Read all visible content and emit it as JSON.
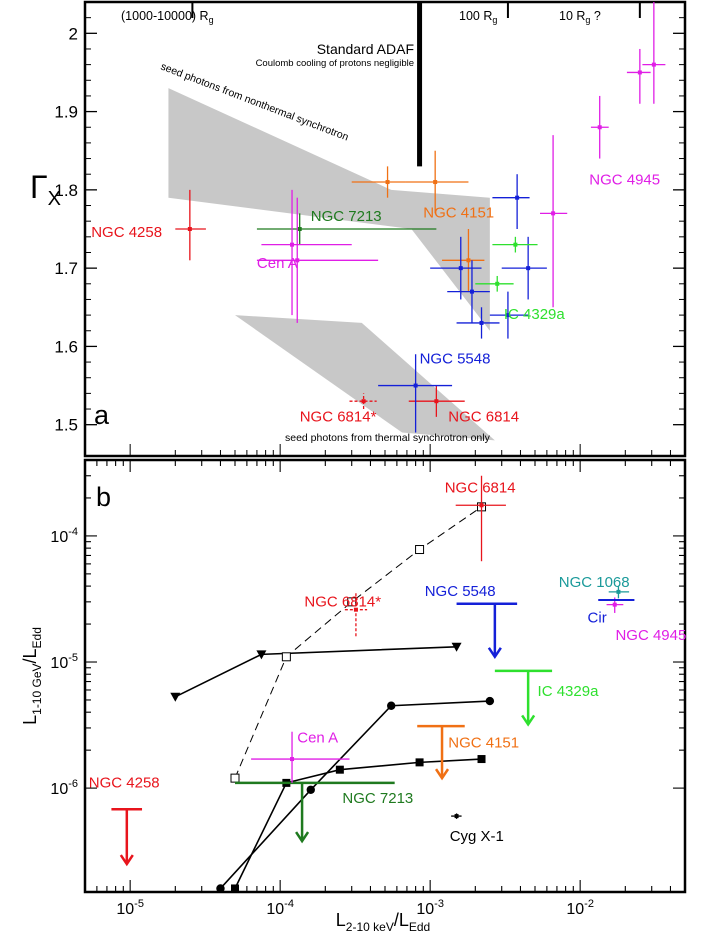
{
  "chart_data": [
    {
      "panel": "a",
      "type": "scatter",
      "x_scale": "log",
      "xlim": [
        5e-06,
        0.05
      ],
      "ylim": [
        1.46,
        2.04
      ],
      "ylabel": "Γ",
      "ylabel_sub": "X",
      "y_ticks": [
        "1.5",
        "1.6",
        "1.7",
        "1.8",
        "1.9",
        "2"
      ],
      "panel_label": "a",
      "regions_top": {
        "left": "(1000-10000) R",
        "left_sub": "g",
        "mid": "100 R",
        "mid_sub": "g",
        "right": "10 R",
        "right_sub": "g",
        "right_suffix": " ?",
        "boundaries_x": [
          2.6e-05,
          0.00085,
          0.0033,
          0.025
        ]
      },
      "annotations": {
        "adaf_title": "Standard ADAF",
        "adaf_sub": "Coulomb cooling of protons negligible",
        "nonthermal": "seed photons from nonthermal synchrotron",
        "thermal": "seed photons from thermal synchrotron only"
      },
      "adaf_line_x": 0.00085,
      "adaf_line_y": [
        1.83,
        2.04
      ],
      "bands": {
        "nonthermal": [
          [
            1.8e-05,
            1.93
          ],
          [
            0.00055,
            1.8
          ],
          [
            0.0025,
            1.79
          ],
          [
            0.0025,
            1.62
          ],
          [
            0.00075,
            1.75
          ],
          [
            1.8e-05,
            1.79
          ]
        ],
        "thermal": [
          [
            5e-05,
            1.64
          ],
          [
            0.00035,
            1.63
          ],
          [
            0.0027,
            1.48
          ],
          [
            0.00065,
            1.49
          ]
        ]
      },
      "points": [
        {
          "x": 2.5e-05,
          "y": 1.75,
          "xlo": 2e-05,
          "xhi": 3.2e-05,
          "ylo": 1.71,
          "yhi": 1.8,
          "color": "#e8141c"
        },
        {
          "x": 0.000135,
          "y": 1.75,
          "xlo": 7e-05,
          "xhi": 0.0011,
          "ylo": 1.73,
          "yhi": 1.77,
          "color": "#1f7a1f"
        },
        {
          "x": 0.00012,
          "y": 1.73,
          "xlo": 7.5e-05,
          "xhi": 0.0003,
          "ylo": 1.64,
          "yhi": 1.8,
          "color": "#e01ee6"
        },
        {
          "x": 0.00013,
          "y": 1.71,
          "xlo": 7e-05,
          "xhi": 0.00045,
          "ylo": 1.63,
          "yhi": 1.79,
          "color": "#e01ee6"
        },
        {
          "x": 0.00052,
          "y": 1.81,
          "xlo": 0.0003,
          "xhi": 0.00068,
          "ylo": 1.79,
          "yhi": 1.83,
          "color": "#f07014"
        },
        {
          "x": 0.00108,
          "y": 1.81,
          "xlo": 0.00068,
          "xhi": 0.0018,
          "ylo": 1.77,
          "yhi": 1.85,
          "color": "#f07014"
        },
        {
          "x": 0.0018,
          "y": 1.71,
          "xlo": 0.0012,
          "xhi": 0.0023,
          "ylo": 1.67,
          "yhi": 1.75,
          "color": "#f07014"
        },
        {
          "x": 0.00036,
          "y": 1.53,
          "xlo": 0.00029,
          "xhi": 0.00044,
          "ylo": 1.52,
          "yhi": 1.54,
          "color": "#e8141c",
          "dashed": true
        },
        {
          "x": 0.0011,
          "y": 1.53,
          "xlo": 0.00072,
          "xhi": 0.0017,
          "ylo": 1.51,
          "yhi": 1.55,
          "color": "#e8141c"
        },
        {
          "x": 0.0008,
          "y": 1.55,
          "xlo": 0.00045,
          "xhi": 0.0014,
          "ylo": 1.49,
          "yhi": 1.59,
          "color": "#1420d8"
        },
        {
          "x": 0.0038,
          "y": 1.79,
          "xlo": 0.0026,
          "xhi": 0.0046,
          "ylo": 1.75,
          "yhi": 1.82,
          "color": "#1420d8"
        },
        {
          "x": 0.0016,
          "y": 1.7,
          "xlo": 0.001,
          "xhi": 0.0022,
          "ylo": 1.66,
          "yhi": 1.74,
          "color": "#1420d8"
        },
        {
          "x": 0.0019,
          "y": 1.67,
          "xlo": 0.0013,
          "xhi": 0.0025,
          "ylo": 1.63,
          "yhi": 1.71,
          "color": "#1420d8"
        },
        {
          "x": 0.0022,
          "y": 1.63,
          "xlo": 0.0015,
          "xhi": 0.0029,
          "ylo": 1.61,
          "yhi": 1.65,
          "color": "#1420d8"
        },
        {
          "x": 0.0033,
          "y": 1.64,
          "xlo": 0.0025,
          "xhi": 0.0045,
          "ylo": 1.61,
          "yhi": 1.67,
          "color": "#1420d8"
        },
        {
          "x": 0.0045,
          "y": 1.7,
          "xlo": 0.003,
          "xhi": 0.006,
          "ylo": 1.66,
          "yhi": 1.74,
          "color": "#1420d8"
        },
        {
          "x": 0.0037,
          "y": 1.73,
          "xlo": 0.0026,
          "xhi": 0.0052,
          "ylo": 1.72,
          "yhi": 1.74,
          "color": "#2ee02e"
        },
        {
          "x": 0.0028,
          "y": 1.68,
          "xlo": 0.002,
          "xhi": 0.0036,
          "ylo": 1.67,
          "yhi": 1.69,
          "color": "#2ee02e"
        },
        {
          "x": 0.0066,
          "y": 1.77,
          "xlo": 0.0054,
          "xhi": 0.0082,
          "ylo": 1.65,
          "yhi": 1.87,
          "color": "#e01ee6"
        },
        {
          "x": 0.0135,
          "y": 1.88,
          "xlo": 0.0118,
          "xhi": 0.0155,
          "ylo": 1.84,
          "yhi": 1.92,
          "color": "#e01ee6"
        },
        {
          "x": 0.025,
          "y": 1.95,
          "xlo": 0.0205,
          "xhi": 0.0295,
          "ylo": 1.91,
          "yhi": 1.98,
          "color": "#e01ee6"
        },
        {
          "x": 0.031,
          "y": 1.96,
          "xlo": 0.026,
          "xhi": 0.037,
          "ylo": 1.91,
          "yhi": 2.04,
          "color": "#e01ee6"
        }
      ],
      "labels": [
        {
          "text": "NGC 4258",
          "x": 5.5e-06,
          "y": 1.74,
          "color": "#e8141c"
        },
        {
          "text": "NGC 7213",
          "x": 0.00016,
          "y": 1.76,
          "color": "#1f7a1f"
        },
        {
          "text": "Cen A",
          "x": 7e-05,
          "y": 1.7,
          "color": "#e01ee6"
        },
        {
          "text": "NGC 4151",
          "x": 0.0009,
          "y": 1.765,
          "color": "#f07014"
        },
        {
          "text": "NGC 4945",
          "x": 0.0115,
          "y": 1.807,
          "color": "#e01ee6"
        },
        {
          "text": "IC 4329a",
          "x": 0.0031,
          "y": 1.635,
          "color": "#2ee02e"
        },
        {
          "text": "NGC 5548",
          "x": 0.00085,
          "y": 1.578,
          "color": "#1420d8"
        },
        {
          "text": "NGC 6814*",
          "x": 0.000135,
          "y": 1.504,
          "color": "#e8141c"
        },
        {
          "text": "NGC 6814",
          "x": 0.00132,
          "y": 1.504,
          "color": "#e8141c"
        }
      ]
    },
    {
      "panel": "b",
      "type": "scatter",
      "x_scale": "log",
      "y_scale": "log",
      "xlim": [
        5e-06,
        0.05
      ],
      "ylim": [
        1.5e-07,
        0.0004
      ],
      "xlabel": "L",
      "xlabel_sub": "2-10 keV",
      "xlabel_mid": "/L",
      "xlabel_sub2": "Edd",
      "ylabel": "L",
      "ylabel_sub": "1-10 GeV",
      "ylabel_mid": "/L",
      "ylabel_sub2": "Edd",
      "panel_label": "b",
      "x_ticks": [
        {
          "base": "10",
          "exp": "-5",
          "value": 1e-05
        },
        {
          "base": "10",
          "exp": "-4",
          "value": 0.0001
        },
        {
          "base": "10",
          "exp": "-3",
          "value": 0.001
        },
        {
          "base": "10",
          "exp": "-2",
          "value": 0.01
        }
      ],
      "y_ticks": [
        {
          "base": "10",
          "exp": "-6",
          "value": 1e-06
        },
        {
          "base": "10",
          "exp": "-5",
          "value": 1e-05
        },
        {
          "base": "10",
          "exp": "-4",
          "value": 0.0001
        }
      ],
      "model_curves": [
        {
          "marker": "triangle",
          "points": [
            [
              2e-05,
              5.3e-06
            ],
            [
              7.5e-05,
              1.15e-05
            ],
            [
              0.0015,
              1.32e-05
            ]
          ]
        },
        {
          "marker": "circle",
          "points": [
            [
              4e-05,
              1.6e-07
            ],
            [
              0.00016,
              9.7e-07
            ],
            [
              0.00055,
              4.5e-06
            ],
            [
              0.0025,
              4.9e-06
            ]
          ]
        },
        {
          "marker": "square",
          "points": [
            [
              5e-05,
              1.6e-07
            ],
            [
              0.00011,
              1.1e-06
            ],
            [
              0.00025,
              1.4e-06
            ],
            [
              0.00085,
              1.6e-06
            ],
            [
              0.0022,
              1.7e-06
            ]
          ]
        },
        {
          "marker": "open-square",
          "dashed": true,
          "points": [
            [
              5e-05,
              1.2e-06
            ],
            [
              0.00011,
              1.1e-05
            ],
            [
              0.0003,
              3e-05
            ],
            [
              0.00085,
              7.8e-05
            ],
            [
              0.0022,
              0.00017
            ]
          ]
        }
      ],
      "upper_limits": [
        {
          "x": 9.5e-06,
          "y": 6.8e-07,
          "xlo": 7.5e-06,
          "xhi": 1.2e-05,
          "y_arrow": 2.5e-07,
          "color": "#e8141c"
        },
        {
          "x": 0.00014,
          "y": 1.1e-06,
          "xlo": 5e-05,
          "xhi": 0.00058,
          "y_arrow": 3.8e-07,
          "color": "#1f7a1f"
        },
        {
          "x": 0.0012,
          "y": 3.1e-06,
          "xlo": 0.00082,
          "xhi": 0.0017,
          "y_arrow": 1.2e-06,
          "color": "#f07014"
        },
        {
          "x": 0.0045,
          "y": 8.5e-06,
          "xlo": 0.0027,
          "xhi": 0.0065,
          "y_arrow": 3.2e-06,
          "color": "#2ee02e"
        },
        {
          "x": 0.0027,
          "y": 2.9e-05,
          "xlo": 0.0015,
          "xhi": 0.0038,
          "y_arrow": 1.1e-05,
          "color": "#1420d8"
        }
      ],
      "points": [
        {
          "x": 0.0022,
          "y": 0.000175,
          "xlo": 0.00148,
          "xhi": 0.0032,
          "ylo": 6.3e-05,
          "yhi": 0.0003,
          "color": "#e8141c"
        },
        {
          "x": 0.00032,
          "y": 2.6e-05,
          "xlo": 0.00027,
          "xhi": 0.00038,
          "ylo": 1.6e-05,
          "yhi": 3.6e-05,
          "color": "#e8141c",
          "dashed": true
        },
        {
          "x": 0.00012,
          "y": 1.7e-06,
          "xlo": 6.4e-05,
          "xhi": 0.00029,
          "ylo": 1.1e-06,
          "yhi": 2.8e-06,
          "color": "#e01ee6"
        },
        {
          "x": 0.0015,
          "y": 6e-07,
          "xlo": 0.00138,
          "xhi": 0.00162,
          "ylo": 5.7e-07,
          "yhi": 6.3e-07,
          "color": "#000000"
        },
        {
          "x": 0.018,
          "y": 3.6e-05,
          "xlo": 0.0155,
          "xhi": 0.0212,
          "ylo": 3.2e-05,
          "yhi": 4e-05,
          "color": "#1a9a9a"
        },
        {
          "x": 0.017,
          "y": 2.85e-05,
          "xlo": 0.015,
          "xhi": 0.0194,
          "ylo": 2.45e-05,
          "yhi": 3.25e-05,
          "color": "#e01ee6"
        }
      ],
      "horizontal_marks": [
        {
          "x": 0.0175,
          "xlo": 0.0132,
          "xhi": 0.023,
          "y": 3.1e-05,
          "color": "#1420d8"
        }
      ],
      "labels": [
        {
          "text": "NGC 6814",
          "x": 0.00125,
          "y": 0.00022,
          "color": "#e8141c"
        },
        {
          "text": "NGC 6814*",
          "x": 0.000145,
          "y": 2.75e-05,
          "color": "#e8141c"
        },
        {
          "text": "NGC 5548",
          "x": 0.00092,
          "y": 3.35e-05,
          "color": "#1420d8"
        },
        {
          "text": "NGC 1068",
          "x": 0.0072,
          "y": 3.95e-05,
          "color": "#1a9a9a"
        },
        {
          "text": "Cir",
          "x": 0.0112,
          "y": 2.05e-05,
          "color": "#1420d8"
        },
        {
          "text": "NGC 4945",
          "x": 0.0172,
          "y": 1.5e-05,
          "color": "#e01ee6"
        },
        {
          "text": "IC 4329a",
          "x": 0.0052,
          "y": 5.4e-06,
          "color": "#2ee02e"
        },
        {
          "text": "NGC 4151",
          "x": 0.00132,
          "y": 2.1e-06,
          "color": "#f07014"
        },
        {
          "text": "Cen A",
          "x": 0.00013,
          "y": 2.3e-06,
          "color": "#e01ee6"
        },
        {
          "text": "NGC 7213",
          "x": 0.00026,
          "y": 7.6e-07,
          "color": "#1f7a1f"
        },
        {
          "text": "NGC 4258",
          "x": 5.3e-06,
          "y": 1.01e-06,
          "color": "#e8141c"
        },
        {
          "text": "Cyg X-1",
          "x": 0.00135,
          "y": 3.8e-07,
          "color": "#000000"
        }
      ]
    }
  ]
}
